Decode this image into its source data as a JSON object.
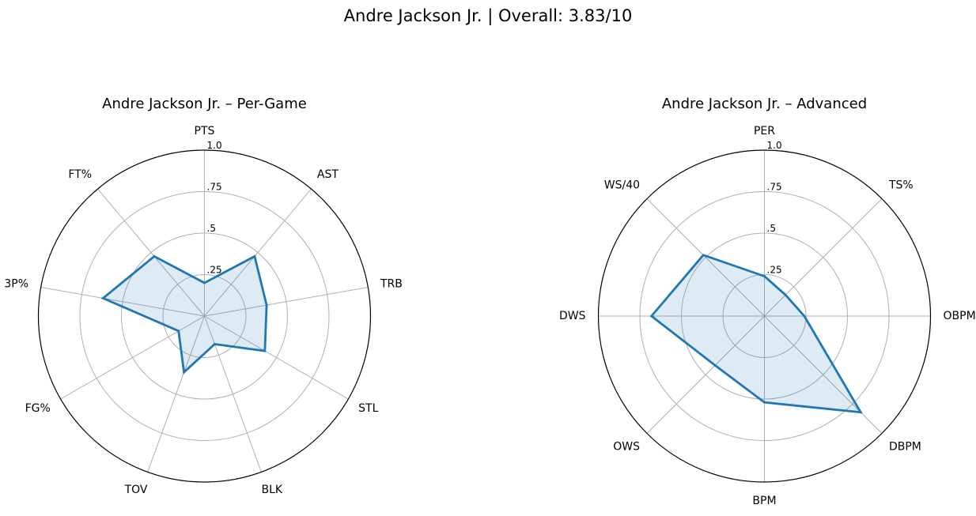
{
  "suptitle": "Andre Jackson Jr. | Overall: 3.83/10",
  "colors": {
    "line": "#1f77b4",
    "fill": "#1f77b4",
    "grid": "#b0b0b0",
    "outer": "#000000"
  },
  "chart_data": [
    {
      "type": "radar",
      "title": "Andre Jackson Jr. – Per-Game",
      "categories": [
        "PTS",
        "AST",
        "TRB",
        "STL",
        "BLK",
        "TOV",
        "FG%",
        "3P%",
        "FT%"
      ],
      "values": [
        0.2,
        0.47,
        0.38,
        0.42,
        0.18,
        0.36,
        0.18,
        0.62,
        0.47
      ],
      "rlim": [
        0,
        1.0
      ],
      "rticks": [
        0.25,
        0.5,
        0.75,
        1.0
      ],
      "rtick_labels": [
        ".25",
        ".5",
        ".75",
        "1.0"
      ],
      "grid": true
    },
    {
      "type": "radar",
      "title": "Andre Jackson Jr. – Advanced",
      "categories": [
        "PER",
        "TS%",
        "OBPM",
        "DBPM",
        "BPM",
        "OWS",
        "DWS",
        "WS/40"
      ],
      "values": [
        0.24,
        0.18,
        0.24,
        0.82,
        0.52,
        0.42,
        0.68,
        0.52
      ],
      "rlim": [
        0,
        1.0
      ],
      "rticks": [
        0.25,
        0.5,
        0.75,
        1.0
      ],
      "rtick_labels": [
        ".25",
        ".5",
        ".75",
        "1.0"
      ],
      "grid": true
    }
  ]
}
